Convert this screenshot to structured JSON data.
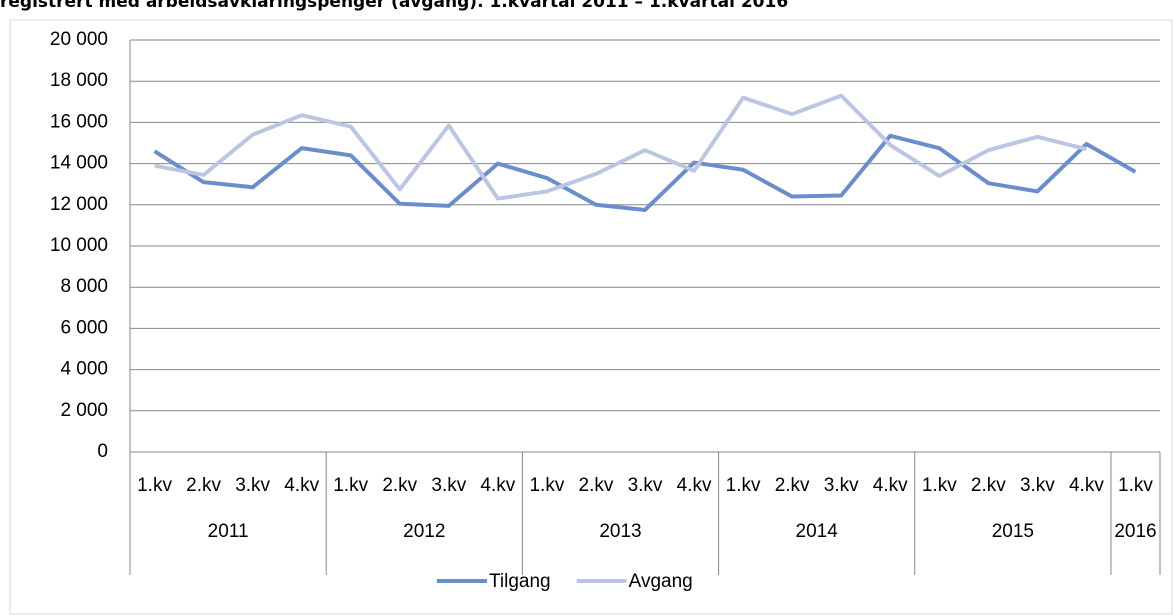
{
  "chart_data": {
    "type": "line",
    "title": "registrert med arbeidsavklaringspenger (avgang). 1.kvartal 2011 – 1.kvartal 2016",
    "categories": [
      "1.kv",
      "2.kv",
      "3.kv",
      "4.kv",
      "1.kv",
      "2.kv",
      "3.kv",
      "4.kv",
      "1.kv",
      "2.kv",
      "3.kv",
      "4.kv",
      "1.kv",
      "2.kv",
      "3.kv",
      "4.kv",
      "1.kv",
      "2.kv",
      "3.kv",
      "4.kv",
      "1.kv"
    ],
    "year_categories": [
      "2011",
      null,
      null,
      null,
      "2012",
      null,
      null,
      null,
      "2013",
      null,
      null,
      null,
      "2014",
      null,
      null,
      null,
      "2015",
      null,
      null,
      null,
      "2016"
    ],
    "series": [
      {
        "name": "Tilgang",
        "color": "#6a8ecb",
        "values": [
          14600,
          13100,
          12850,
          14750,
          14400,
          12050,
          11950,
          14000,
          13300,
          12000,
          11750,
          14050,
          13700,
          12400,
          12450,
          15350,
          14750,
          13050,
          12650,
          14950,
          13600
        ]
      },
      {
        "name": "Avgang",
        "color": "#bcc6e3",
        "values": [
          13900,
          13450,
          15400,
          16350,
          15800,
          12750,
          15850,
          12300,
          12650,
          13500,
          14650,
          13650,
          17200,
          16400,
          17300,
          14900,
          13400,
          14650,
          15300,
          14700,
          null
        ]
      }
    ],
    "ylim": [
      0,
      20000
    ],
    "yticks": [
      {
        "value": 0,
        "label": "0"
      },
      {
        "value": 2000,
        "label": "2 000"
      },
      {
        "value": 4000,
        "label": "4 000"
      },
      {
        "value": 6000,
        "label": "6 000"
      },
      {
        "value": 8000,
        "label": "8 000"
      },
      {
        "value": 10000,
        "label": "10 000"
      },
      {
        "value": 12000,
        "label": "12 000"
      },
      {
        "value": 14000,
        "label": "14 000"
      },
      {
        "value": 16000,
        "label": "16 000"
      },
      {
        "value": 18000,
        "label": "18 000"
      },
      {
        "value": 20000,
        "label": "20 000"
      }
    ],
    "grid": true,
    "legend": "bottom"
  }
}
